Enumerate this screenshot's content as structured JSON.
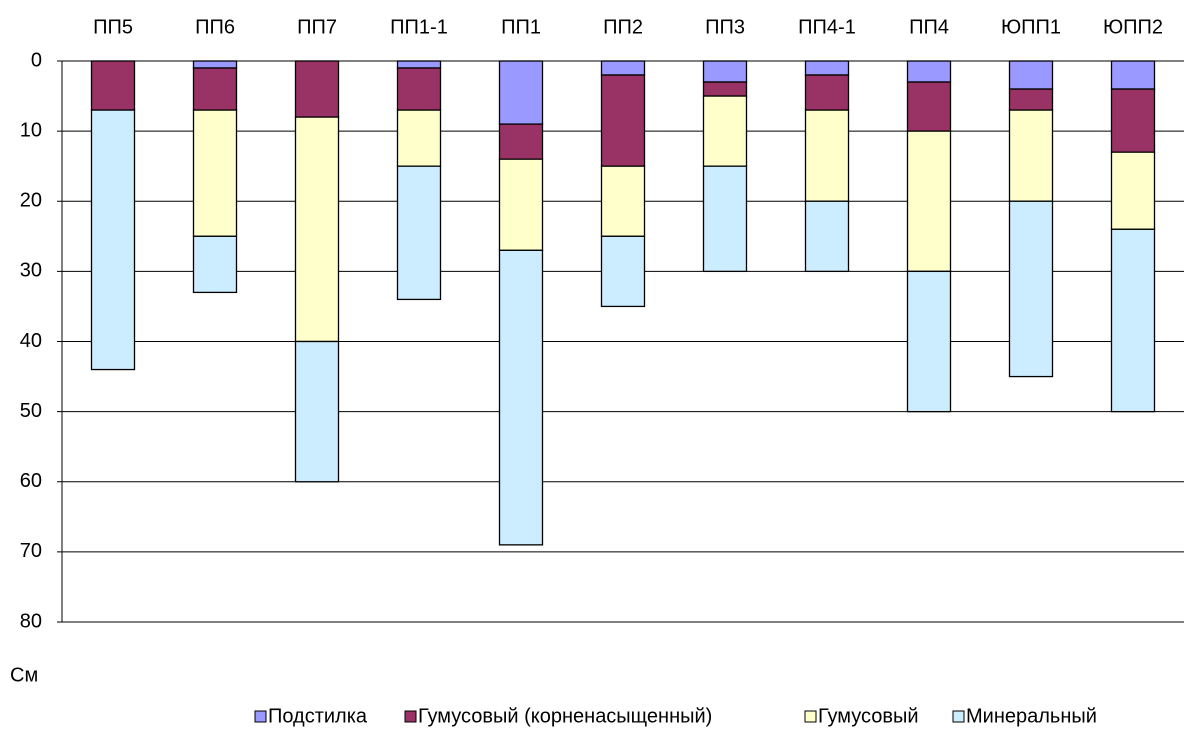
{
  "chart_data": {
    "type": "stacked_bar",
    "y_label": "См",
    "categories": [
      "ПП5",
      "ПП6",
      "ПП7",
      "ПП1-1",
      "ПП1",
      "ПП2",
      "ПП3",
      "ПП4-1",
      "ПП4",
      "ЮПП1",
      "ЮПП2"
    ],
    "series": [
      {
        "name": "Подстилка",
        "color": "#9999ff",
        "values": [
          0,
          1,
          0,
          1,
          9,
          2,
          3,
          2,
          3,
          4,
          4
        ]
      },
      {
        "name": "Гумусовый (корненасыщенный)",
        "color": "#993366",
        "values": [
          7,
          6,
          8,
          6,
          5,
          13,
          2,
          5,
          7,
          3,
          9
        ]
      },
      {
        "name": "Гумусовый",
        "color": "#ffffcc",
        "values": [
          0,
          18,
          32,
          8,
          13,
          10,
          10,
          13,
          20,
          13,
          11
        ]
      },
      {
        "name": "Минеральный",
        "color": "#ccecff",
        "values": [
          37,
          8,
          20,
          19,
          42,
          10,
          15,
          10,
          20,
          25,
          26
        ]
      }
    ],
    "ylim": [
      0,
      80
    ],
    "yticks": [
      0,
      10,
      20,
      30,
      40,
      50,
      60,
      70,
      80
    ],
    "y_inverted": true,
    "grid": true,
    "legend": "bottom"
  }
}
